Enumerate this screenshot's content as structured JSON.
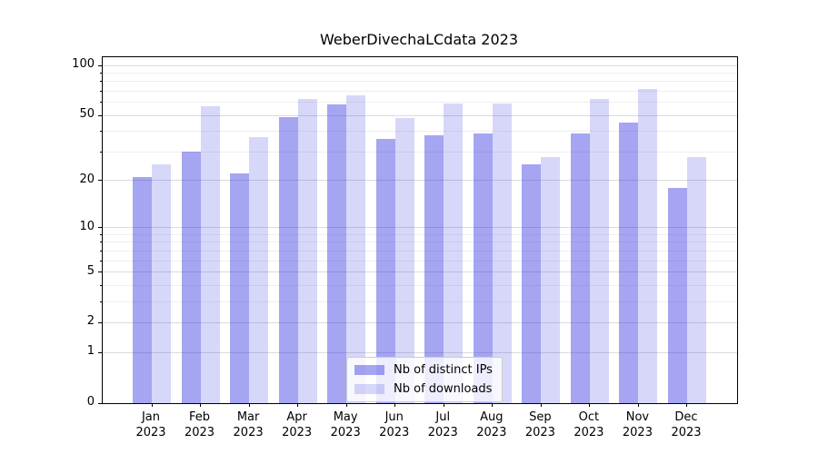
{
  "title": "WeberDivechaLCdata 2023",
  "legend": {
    "items": [
      {
        "label": "Nb of distinct IPs",
        "color": "rgba(40,40,225,0.42)"
      },
      {
        "label": "Nb of downloads",
        "color": "rgba(40,40,225,0.19)"
      }
    ],
    "position": "lower center"
  },
  "colors": {
    "bar_distinct_ips": "rgba(40,40,225,0.42)",
    "bar_downloads": "rgba(40,40,225,0.19)",
    "grid_major": "#dbdbdb",
    "grid_minor": "#efefef",
    "spine": "#000000"
  },
  "chart_data": {
    "type": "bar",
    "title": "WeberDivechaLCdata 2023",
    "categories": [
      "Jan 2023",
      "Feb 2023",
      "Mar 2023",
      "Apr 2023",
      "May 2023",
      "Jun 2023",
      "Jul 2023",
      "Aug 2023",
      "Sep 2023",
      "Oct 2023",
      "Nov 2023",
      "Dec 2023"
    ],
    "series": [
      {
        "name": "Nb of distinct IPs",
        "values": [
          21,
          30,
          22,
          49,
          58,
          36,
          38,
          39,
          25,
          39,
          45,
          18
        ]
      },
      {
        "name": "Nb of downloads",
        "values": [
          25,
          57,
          37,
          63,
          66,
          48,
          59,
          59,
          28,
          63,
          72,
          28
        ]
      }
    ],
    "xlabel": "",
    "ylabel": "",
    "yscale": "log1p",
    "ylim": [
      0,
      112
    ],
    "y_ticks": [
      0,
      1,
      2,
      5,
      10,
      20,
      50,
      100
    ],
    "y_minor_ticks": [
      3,
      4,
      6,
      7,
      8,
      9,
      30,
      40,
      60,
      70,
      80,
      90
    ],
    "grid": "horizontal",
    "legend_position": "lower center"
  }
}
